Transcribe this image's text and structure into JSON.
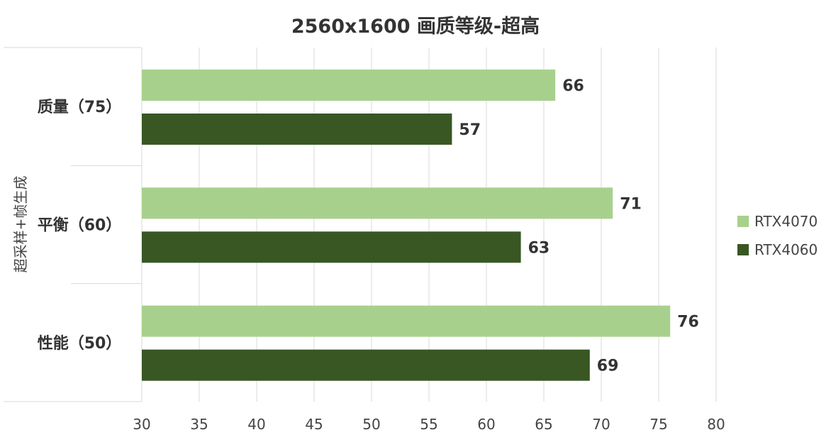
{
  "chart_data": {
    "type": "bar",
    "orientation": "horizontal",
    "title": "2560x1600 画质等级-超高",
    "group_label": "超采样+帧生成",
    "categories": [
      "质量（75）",
      "平衡（60）",
      "性能（50）"
    ],
    "series": [
      {
        "name": "RTX4070",
        "color": "#a8d08d",
        "values": [
          66,
          71,
          76
        ]
      },
      {
        "name": "RTX4060",
        "color": "#385723",
        "values": [
          57,
          63,
          69
        ]
      }
    ],
    "xlim": [
      30,
      80
    ],
    "x_ticks": [
      "30",
      "35",
      "40",
      "45",
      "50",
      "55",
      "60",
      "65",
      "70",
      "75",
      "80"
    ],
    "grid": true,
    "legend_position": "right",
    "data_labels": true
  }
}
